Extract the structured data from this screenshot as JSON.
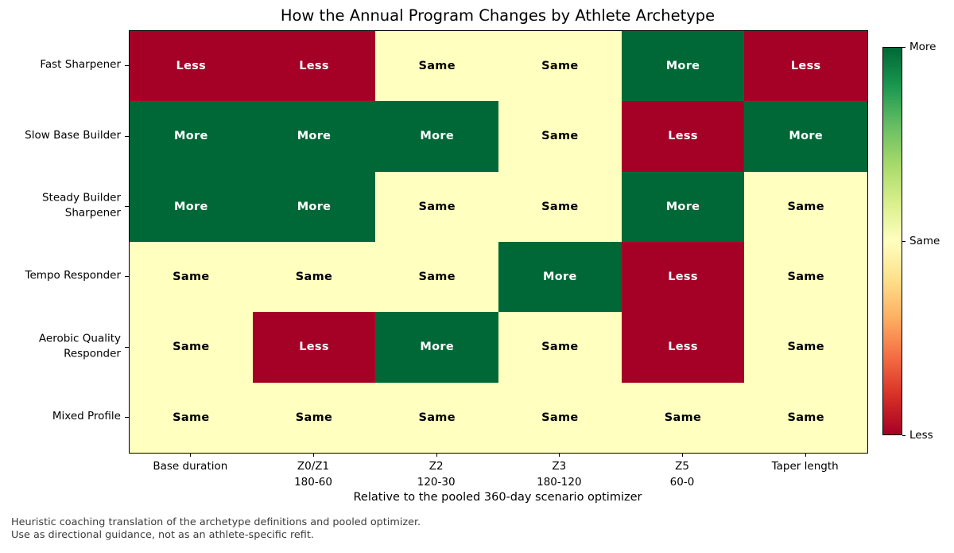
{
  "footnote": {
    "line1": "Heuristic coaching translation of the archetype definitions and pooled optimizer.",
    "line2": "Use as directional guidance, not as an athlete-specific refit."
  },
  "chart_data": {
    "type": "heatmap",
    "title": "How the Annual Program Changes by Athlete Archetype",
    "xlabel": "Relative to the pooled 360-day scenario optimizer",
    "rows": [
      "Fast Sharpener",
      "Slow Base Builder",
      "Steady Builder\nSharpener",
      "Tempo Responder",
      "Aerobic Quality\nResponder",
      "Mixed Profile"
    ],
    "columns": [
      "Base duration",
      "Z0/Z1\n180-60",
      "Z2\n120-30",
      "Z3\n180-120",
      "Z5\n60-0",
      "Taper length"
    ],
    "values": [
      [
        "Less",
        "Less",
        "Same",
        "Same",
        "More",
        "Less"
      ],
      [
        "More",
        "More",
        "More",
        "Same",
        "Less",
        "More"
      ],
      [
        "More",
        "More",
        "Same",
        "Same",
        "More",
        "Same"
      ],
      [
        "Same",
        "Same",
        "Same",
        "More",
        "Less",
        "Same"
      ],
      [
        "Same",
        "Less",
        "More",
        "Same",
        "Less",
        "Same"
      ],
      [
        "Same",
        "Same",
        "Same",
        "Same",
        "Same",
        "Same"
      ]
    ],
    "colormap": "RdYlGn",
    "cell_colors": {
      "Less": "#a50026",
      "Same": "#ffffbf",
      "More": "#006837"
    },
    "cell_text_colors": {
      "Less": "#ffffff",
      "Same": "#000000",
      "More": "#ffffff"
    },
    "grid_lines": false,
    "colorbar": {
      "position": "right",
      "tick_labels": [
        "More",
        "Same",
        "Less"
      ],
      "tick_fractions_from_top": [
        0,
        0.5,
        1
      ],
      "gradient_top_to_bottom": [
        "#006837",
        "#1a9850",
        "#66bd63",
        "#a6d96a",
        "#d9ef8b",
        "#ffffbf",
        "#fee08b",
        "#fdae61",
        "#f46d43",
        "#d73027",
        "#a50026"
      ]
    }
  }
}
